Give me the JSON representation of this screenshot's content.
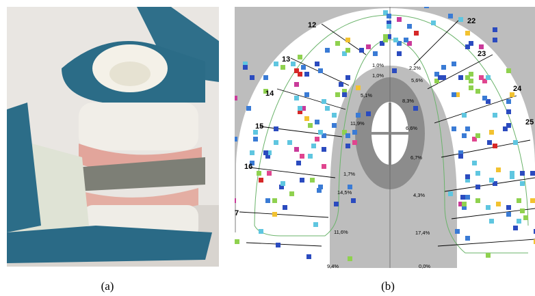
{
  "panels": [
    {
      "label": "(a)"
    },
    {
      "label": "(b)",
      "teeth": [
        "12",
        "13",
        "14",
        "15",
        "16",
        "7",
        "22",
        "23",
        "24",
        "25"
      ],
      "percentages": [
        "1,0%",
        "2,2%",
        "1,0%",
        "5,6%",
        "5,1%",
        "8,3%",
        "11,9%",
        "6,6%",
        "1,7%",
        "6,7%",
        "14,5%",
        "4,3%",
        "11,6%",
        "17,4%",
        "9,4%",
        "0,0%"
      ]
    }
  ]
}
